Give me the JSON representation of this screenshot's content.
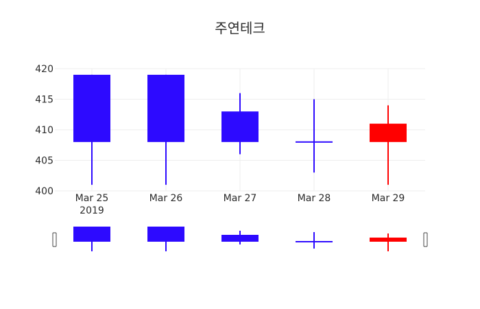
{
  "chart_data": {
    "type": "candlestick",
    "title": "주연테크",
    "x_year_label": "2019",
    "categories": [
      "Mar 25",
      "Mar 26",
      "Mar 27",
      "Mar 28",
      "Mar 29"
    ],
    "series": [
      {
        "open": [
          419,
          419,
          413,
          408,
          408
        ],
        "high": [
          419,
          419,
          416,
          415,
          414
        ],
        "low": [
          401,
          401,
          406,
          403,
          401
        ],
        "close": [
          408,
          408,
          408,
          408,
          411
        ]
      }
    ],
    "ylim": [
      400,
      420
    ],
    "yticks": [
      400,
      405,
      410,
      415,
      420
    ],
    "colors": {
      "decreasing": "#2d0aff",
      "increasing": "#ff0000",
      "grid": "#eeeeee"
    },
    "rangeslider": true,
    "grid": true
  }
}
